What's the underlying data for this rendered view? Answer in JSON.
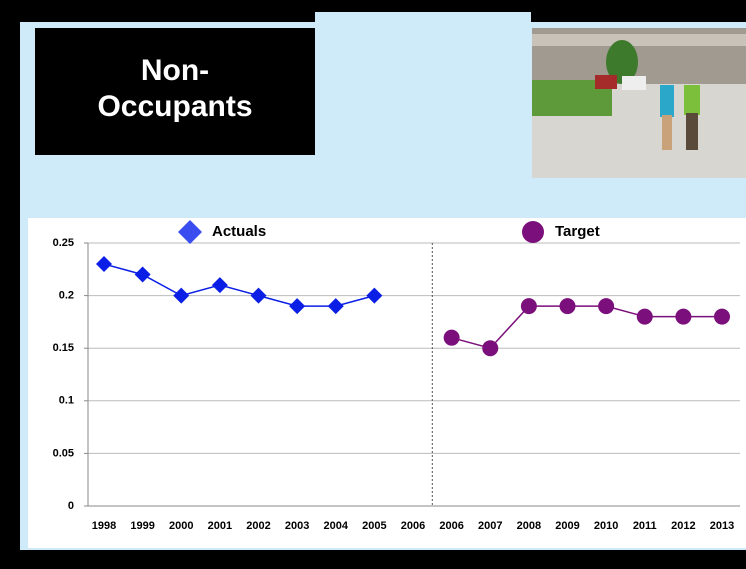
{
  "slide": {
    "title_lines": [
      "Non-",
      "Occupants"
    ]
  },
  "chart_data": {
    "type": "line",
    "categories": [
      "1998",
      "1999",
      "2000",
      "2001",
      "2002",
      "2003",
      "2004",
      "2005",
      "2006",
      "2006",
      "2007",
      "2008",
      "2009",
      "2010",
      "2011",
      "2012",
      "2013"
    ],
    "series": [
      {
        "name": "Actuals",
        "color": "#0a1ee6",
        "marker": "diamond",
        "values": [
          0.23,
          0.22,
          0.2,
          0.21,
          0.2,
          0.19,
          0.19,
          0.2,
          null,
          null,
          null,
          null,
          null,
          null,
          null,
          null,
          null
        ]
      },
      {
        "name": "Target",
        "color": "#7b0f7b",
        "marker": "circle",
        "values": [
          null,
          null,
          null,
          null,
          null,
          null,
          null,
          null,
          null,
          0.16,
          0.15,
          0.19,
          0.19,
          0.19,
          0.18,
          0.18,
          0.18
        ]
      }
    ],
    "ylim": [
      0,
      0.25
    ],
    "yticks": [
      0,
      0.05,
      0.1,
      0.15,
      0.2,
      0.25
    ],
    "grid": true
  }
}
